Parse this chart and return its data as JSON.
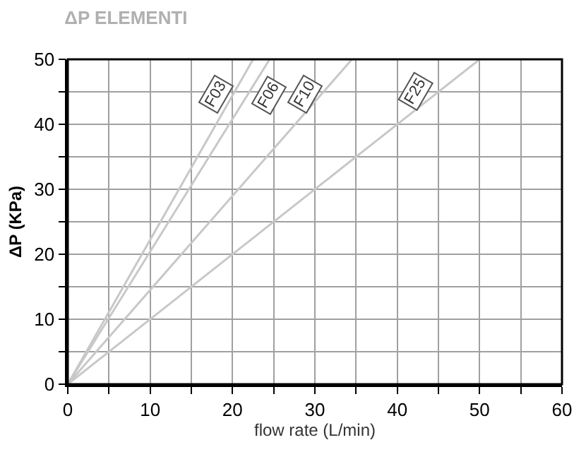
{
  "chart_data": {
    "type": "line",
    "title": "ΔP ELEMENTI",
    "xlabel": "flow rate (L/min)",
    "ylabel": "ΔP (KPa)",
    "series": [
      {
        "x": [
          0,
          22.5
        ],
        "values": [
          0,
          50
        ],
        "color": "#c8c8c8"
      },
      {
        "x": [
          0,
          24.5
        ],
        "values": [
          0,
          50
        ],
        "color": "#c8c8c8"
      },
      {
        "x": [
          0,
          34.5
        ],
        "values": [
          0,
          50
        ],
        "color": "#c8c8c8"
      },
      {
        "x": [
          0,
          50
        ],
        "values": [
          0,
          50
        ],
        "color": "#c8c8c8"
      }
    ],
    "annotations": [
      {
        "text": "F03",
        "x": 18,
        "y": 44.5
      },
      {
        "text": "F06",
        "x": 24.5,
        "y": 44.5
      },
      {
        "text": "F10",
        "x": 28.8,
        "y": 44.5
      },
      {
        "text": "F25",
        "x": 42.2,
        "y": 45
      }
    ],
    "xlim": [
      0,
      60
    ],
    "ylim": [
      0,
      50
    ],
    "xticks": [
      0,
      {
        "value": 5,
        "label": null
      },
      10,
      {
        "value": 15,
        "label": null
      },
      20,
      {
        "value": 25,
        "label": null
      },
      30,
      {
        "value": 35,
        "label": null
      },
      40,
      {
        "value": 45,
        "label": null
      },
      50,
      {
        "value": 55,
        "label": null
      },
      60
    ],
    "yticks": [
      0,
      {
        "value": 5,
        "label": null
      },
      10,
      {
        "value": 15,
        "label": null
      },
      20,
      {
        "value": 25,
        "label": null
      },
      30,
      {
        "value": 35,
        "label": null
      },
      40,
      {
        "value": 45,
        "label": null
      },
      50
    ],
    "grid": true,
    "marker": "none",
    "line_style": "solid"
  }
}
